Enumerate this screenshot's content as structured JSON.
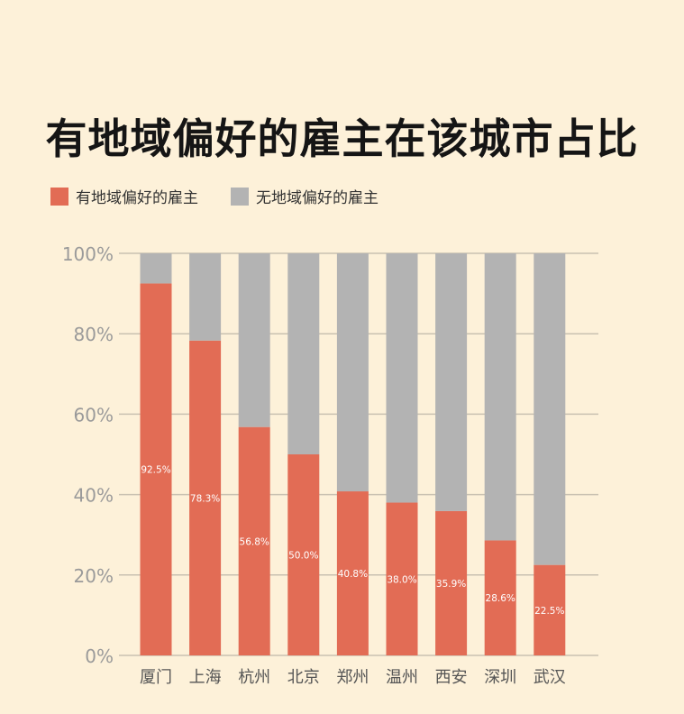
{
  "chart_data": {
    "type": "bar",
    "stacked": true,
    "title": "有地域偏好的雇主在该城市占比",
    "categories": [
      "厦门",
      "上海",
      "杭州",
      "北京",
      "郑州",
      "温州",
      "西安",
      "深圳",
      "武汉"
    ],
    "series": [
      {
        "name": "有地域偏好的雇主",
        "color": "#e26c55",
        "values": [
          92.5,
          78.3,
          56.8,
          50.0,
          40.8,
          38.0,
          35.9,
          28.6,
          22.5
        ],
        "labels": [
          "92.5%",
          "78.3%",
          "56.8%",
          "50.0%",
          "40.8%",
          "38.0%",
          "35.9%",
          "28.6%",
          "22.5%"
        ]
      },
      {
        "name": "无地域偏好的雇主",
        "color": "#b3b3b3",
        "values": [
          7.5,
          21.7,
          43.2,
          50.0,
          59.2,
          62.0,
          64.1,
          71.4,
          77.5
        ]
      }
    ],
    "yticks": [
      "0%",
      "20%",
      "40%",
      "60%",
      "80%",
      "100%"
    ],
    "ylim": [
      0,
      100
    ],
    "grid": true,
    "legend_position": "top-left"
  }
}
